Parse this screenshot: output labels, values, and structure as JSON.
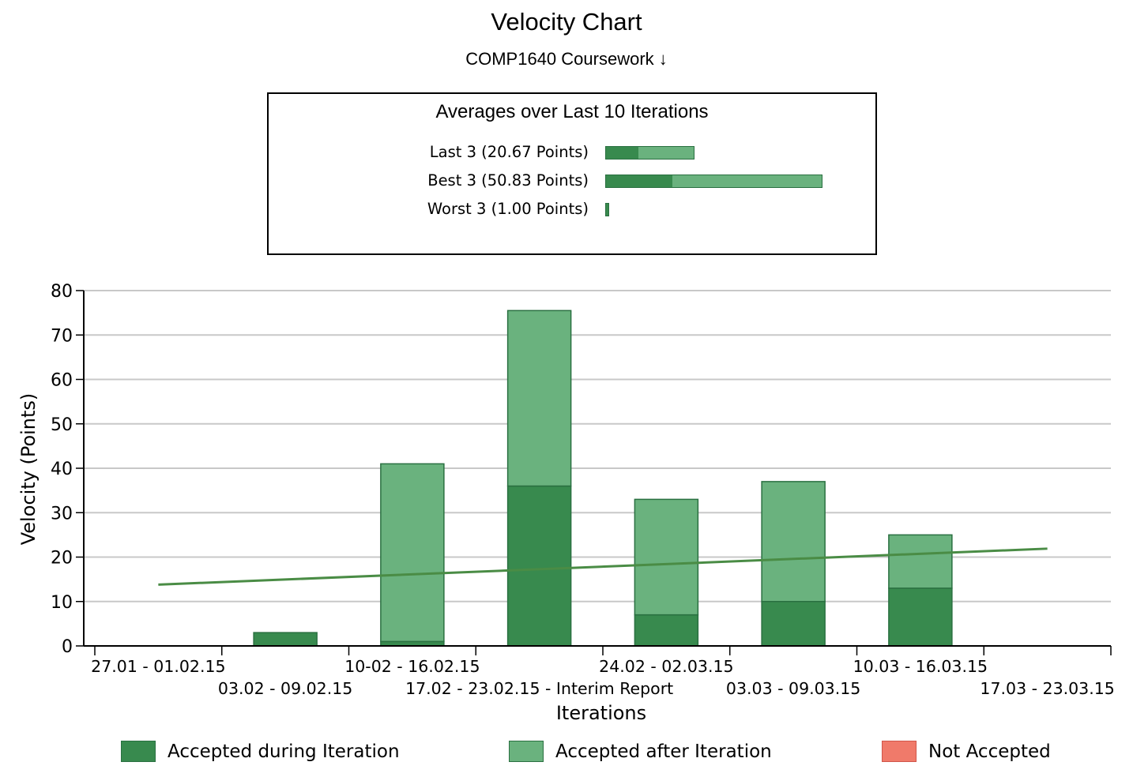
{
  "colors": {
    "accepted_during": "#388a4e",
    "accepted_after": "#6ab27e",
    "not_accepted": "#f07a6a",
    "bar_border": "#2a7041",
    "trend_line": "#4a8c45",
    "grid": "#c8c8c8"
  },
  "header": {
    "title": "Velocity Chart",
    "subtitle": "COMP1640 Coursework ↓"
  },
  "averages": {
    "title": "Averages over Last 10 Iterations",
    "rows": [
      {
        "label": "Last 3 (20.67 Points)",
        "accepted_during": 3.3,
        "total": 9.0
      },
      {
        "label": "Best 3 (50.83 Points)",
        "accepted_during": 6.8,
        "total": 22.0
      },
      {
        "label": "Worst 3 (1.00 Points)",
        "accepted_during": 0.4,
        "total": 0.4
      }
    ]
  },
  "chart_data": {
    "type": "bar",
    "stacked": true,
    "xlabel": "Iterations",
    "ylabel": "Velocity (Points)",
    "ylim": [
      0,
      80
    ],
    "yticks": [
      0,
      10,
      20,
      30,
      40,
      50,
      60,
      70,
      80
    ],
    "grid": true,
    "categories": [
      "27.01 - 01.02.15",
      "03.02 - 09.02.15",
      "10-02 - 16.02.15",
      "17.02 - 23.02.15 - Interim Report",
      "24.02 - 02.03.15",
      "03.03 - 09.03.15",
      "10.03 - 16.03.15",
      "17.03 - 23.03.15"
    ],
    "series": [
      {
        "name": "Accepted during Iteration",
        "values": [
          0,
          3,
          1,
          36,
          7,
          10,
          13,
          0
        ]
      },
      {
        "name": "Accepted after Iteration",
        "values": [
          0,
          0,
          40,
          39.5,
          26,
          27,
          12,
          0
        ]
      },
      {
        "name": "Not Accepted",
        "values": [
          0,
          0,
          0,
          0,
          0,
          0,
          0,
          0
        ]
      }
    ],
    "trend": [
      13.8,
      21.9
    ],
    "legend_position": "bottom"
  }
}
